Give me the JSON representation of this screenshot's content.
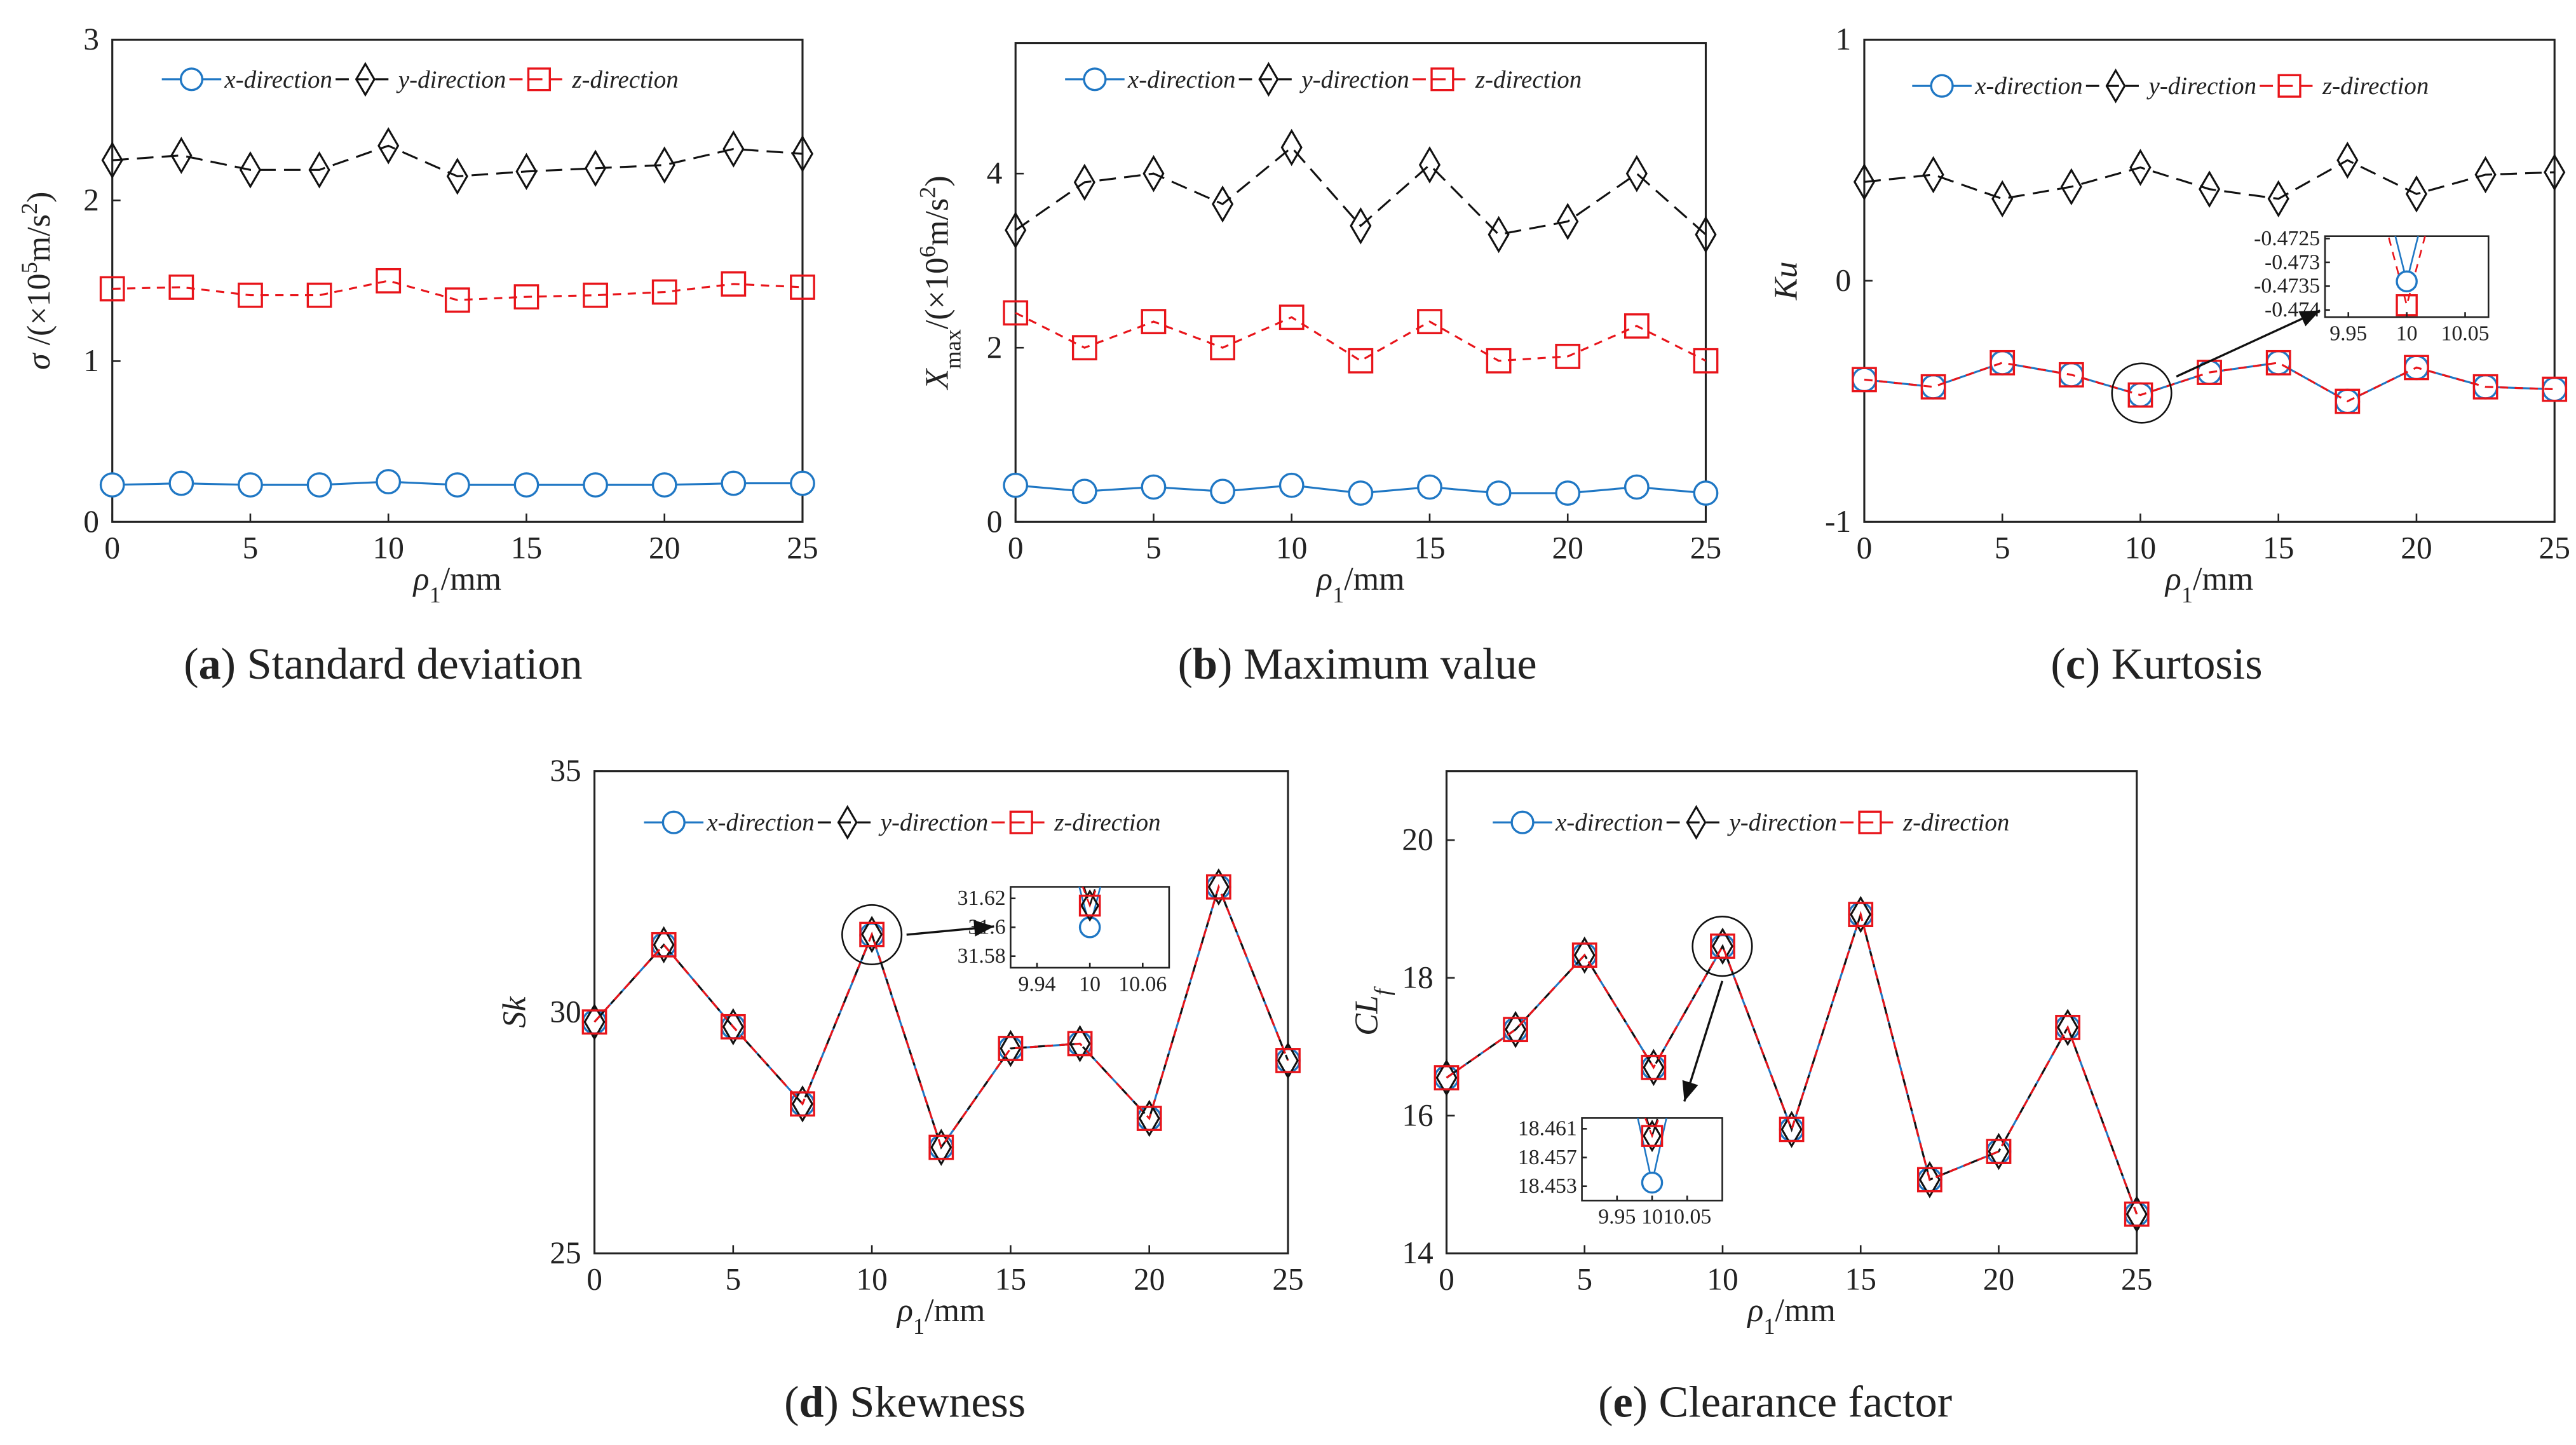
{
  "chart_data": [
    {
      "id": "a",
      "type": "line",
      "caption": {
        "letter": "a",
        "text": "Standard deviation"
      },
      "x": [
        0,
        2.5,
        5,
        7.5,
        10,
        12.5,
        15,
        17.5,
        20,
        22.5,
        25
      ],
      "xlabel": [
        {
          "t": "ρ",
          "s": "it"
        },
        {
          "t": "1",
          "s": "sub"
        },
        {
          "t": "/mm",
          "s": ""
        }
      ],
      "ylabel": [
        {
          "t": "σ",
          "s": "it"
        },
        {
          "t": " /(×10",
          "s": ""
        },
        {
          "t": "5",
          "s": "sup"
        },
        {
          "t": "m/s",
          "s": ""
        },
        {
          "t": "2",
          "s": "sup"
        },
        {
          "t": ")",
          "s": ""
        }
      ],
      "xlim": [
        0,
        25
      ],
      "ylim": [
        0,
        3
      ],
      "xticks": [
        "0",
        "5",
        "10",
        "15",
        "20",
        "25"
      ],
      "yticks": [
        "0",
        "1",
        "2",
        "3"
      ],
      "legend_position": "top",
      "series": [
        {
          "name": "x-direction",
          "values": [
            0.23,
            0.24,
            0.23,
            0.23,
            0.25,
            0.23,
            0.23,
            0.23,
            0.23,
            0.24,
            0.24
          ]
        },
        {
          "name": "y-direction",
          "values": [
            2.25,
            2.28,
            2.19,
            2.19,
            2.34,
            2.15,
            2.18,
            2.2,
            2.22,
            2.32,
            2.29
          ]
        },
        {
          "name": "z-direction",
          "values": [
            1.45,
            1.46,
            1.41,
            1.41,
            1.5,
            1.38,
            1.4,
            1.41,
            1.43,
            1.48,
            1.46
          ]
        }
      ]
    },
    {
      "id": "b",
      "type": "line",
      "caption": {
        "letter": "b",
        "text": "Maximum value"
      },
      "x": [
        0,
        2.5,
        5,
        7.5,
        10,
        12.5,
        15,
        17.5,
        20,
        22.5,
        25
      ],
      "xlabel": [
        {
          "t": "ρ",
          "s": "it"
        },
        {
          "t": "1",
          "s": "sub"
        },
        {
          "t": "/mm",
          "s": ""
        }
      ],
      "ylabel": [
        {
          "t": "X",
          "s": "it"
        },
        {
          "t": "max",
          "s": "sub"
        },
        {
          "t": "/(×10",
          "s": ""
        },
        {
          "t": "6",
          "s": "sup"
        },
        {
          "t": "m/s",
          "s": ""
        },
        {
          "t": "2",
          "s": "sup"
        },
        {
          "t": ")",
          "s": ""
        }
      ],
      "xlim": [
        0,
        25
      ],
      "ylim": [
        0,
        5.5
      ],
      "xticks": [
        "0",
        "5",
        "10",
        "15",
        "20",
        "25"
      ],
      "yticks": [
        "0",
        "2",
        "4"
      ],
      "legend_position": "top",
      "series": [
        {
          "name": "x-direction",
          "values": [
            0.42,
            0.35,
            0.4,
            0.35,
            0.42,
            0.33,
            0.4,
            0.33,
            0.33,
            0.4,
            0.33
          ]
        },
        {
          "name": "y-direction",
          "values": [
            3.35,
            3.9,
            4.0,
            3.65,
            4.3,
            3.4,
            4.1,
            3.3,
            3.45,
            4.0,
            3.3
          ]
        },
        {
          "name": "z-direction",
          "values": [
            2.4,
            2.0,
            2.3,
            2.0,
            2.35,
            1.85,
            2.3,
            1.85,
            1.9,
            2.25,
            1.85
          ]
        }
      ]
    },
    {
      "id": "c",
      "type": "line",
      "caption": {
        "letter": "c",
        "text": "Kurtosis"
      },
      "x": [
        0,
        2.5,
        5,
        7.5,
        10,
        12.5,
        15,
        17.5,
        20,
        22.5,
        25
      ],
      "xlabel": [
        {
          "t": "ρ",
          "s": "it"
        },
        {
          "t": "1",
          "s": "sub"
        },
        {
          "t": "/mm",
          "s": ""
        }
      ],
      "ylabel": [
        {
          "t": "Ku",
          "s": "it"
        }
      ],
      "xlim": [
        0,
        25
      ],
      "ylim": [
        -1,
        1
      ],
      "xticks": [
        "0",
        "5",
        "10",
        "15",
        "20",
        "25"
      ],
      "yticks": [
        "-1",
        "0",
        "1"
      ],
      "legend_position": "top",
      "series": [
        {
          "name": "x-direction",
          "values": [
            -0.41,
            -0.44,
            -0.34,
            -0.39,
            -0.4734,
            -0.38,
            -0.34,
            -0.5,
            -0.36,
            -0.44,
            -0.45
          ]
        },
        {
          "name": "y-direction",
          "values": [
            0.41,
            0.44,
            0.34,
            0.39,
            0.47,
            0.38,
            0.34,
            0.5,
            0.36,
            0.44,
            0.45
          ]
        },
        {
          "name": "z-direction",
          "values": [
            -0.41,
            -0.44,
            -0.34,
            -0.39,
            -0.4739,
            -0.38,
            -0.34,
            -0.5,
            -0.36,
            -0.44,
            -0.45
          ]
        }
      ],
      "inset": {
        "xlim": [
          9.93,
          10.07
        ],
        "ylim": [
          -0.47415,
          -0.47245
        ],
        "xticks": [
          "9.95",
          "10",
          "10.05"
        ],
        "yticks": [
          "-0.4725",
          "-0.473",
          "-0.4735",
          "-0.474"
        ],
        "x": 10,
        "values": {
          "x-direction": -0.4734,
          "z-direction": -0.4739
        }
      }
    },
    {
      "id": "d",
      "type": "line",
      "caption": {
        "letter": "d",
        "text": "Skewness"
      },
      "x": [
        0,
        2.5,
        5,
        7.5,
        10,
        12.5,
        15,
        17.5,
        20,
        22.5,
        25
      ],
      "xlabel": [
        {
          "t": "ρ",
          "s": "it"
        },
        {
          "t": "1",
          "s": "sub"
        },
        {
          "t": "/mm",
          "s": ""
        }
      ],
      "ylabel": [
        {
          "t": "Sk",
          "s": "it"
        }
      ],
      "xlim": [
        0,
        25
      ],
      "ylim": [
        25,
        35
      ],
      "xticks": [
        "0",
        "5",
        "10",
        "15",
        "20",
        "25"
      ],
      "yticks": [
        "25",
        "30",
        "35"
      ],
      "legend_position": "top",
      "series": [
        {
          "name": "x-direction",
          "values": [
            29.8,
            31.4,
            29.7,
            28.1,
            31.6,
            27.2,
            29.25,
            29.35,
            27.8,
            32.6,
            29.0
          ]
        },
        {
          "name": "y-direction",
          "values": [
            29.8,
            31.4,
            29.7,
            28.1,
            31.615,
            27.2,
            29.25,
            29.35,
            27.8,
            32.6,
            29.0
          ]
        },
        {
          "name": "z-direction",
          "values": [
            29.8,
            31.4,
            29.7,
            28.1,
            31.615,
            27.2,
            29.25,
            29.35,
            27.8,
            32.6,
            29.0
          ]
        }
      ],
      "inset": {
        "xlim": [
          9.91,
          10.09
        ],
        "ylim": [
          31.572,
          31.628
        ],
        "xticks": [
          "9.94",
          "10",
          "10.06"
        ],
        "yticks": [
          "31.62",
          "31.6",
          "31.58"
        ],
        "x": 10,
        "values": {
          "x-direction": 31.6,
          "y-direction": 31.615,
          "z-direction": 31.615
        }
      }
    },
    {
      "id": "e",
      "type": "line",
      "caption": {
        "letter": "e",
        "text": "Clearance factor"
      },
      "x": [
        0,
        2.5,
        5,
        7.5,
        10,
        12.5,
        15,
        17.5,
        20,
        22.5,
        25
      ],
      "xlabel": [
        {
          "t": "ρ",
          "s": "it"
        },
        {
          "t": "1",
          "s": "sub"
        },
        {
          "t": "/mm",
          "s": ""
        }
      ],
      "ylabel": [
        {
          "t": "CL",
          "s": "it"
        },
        {
          "t": "f",
          "s": "sub-it"
        }
      ],
      "xlim": [
        0,
        25
      ],
      "ylim": [
        14,
        21
      ],
      "xticks": [
        "0",
        "5",
        "10",
        "15",
        "20",
        "25"
      ],
      "yticks": [
        "14",
        "16",
        "18",
        "20"
      ],
      "legend_position": "top",
      "series": [
        {
          "name": "x-direction",
          "values": [
            16.55,
            17.25,
            18.33,
            16.7,
            18.4535,
            15.8,
            18.92,
            15.07,
            15.48,
            17.28,
            14.57
          ]
        },
        {
          "name": "y-direction",
          "values": [
            16.55,
            17.25,
            18.33,
            16.7,
            18.46,
            15.8,
            18.92,
            15.07,
            15.48,
            17.28,
            14.57
          ]
        },
        {
          "name": "z-direction",
          "values": [
            16.55,
            17.25,
            18.33,
            16.7,
            18.46,
            15.8,
            18.92,
            15.07,
            15.48,
            17.28,
            14.57
          ]
        }
      ],
      "inset": {
        "xlim": [
          9.9,
          10.1
        ],
        "ylim": [
          18.451,
          18.4625
        ],
        "xticks": [
          "9.95",
          "10",
          "10.05"
        ],
        "yticks": [
          "18.461",
          "18.457",
          "18.453"
        ],
        "x": 10,
        "values": {
          "x-direction": 18.4535,
          "y-direction": 18.46,
          "z-direction": 18.46
        }
      }
    }
  ],
  "colors": {
    "x-direction": "#1f77c4",
    "y-direction": "#111111",
    "z-direction": "#e8141a"
  }
}
